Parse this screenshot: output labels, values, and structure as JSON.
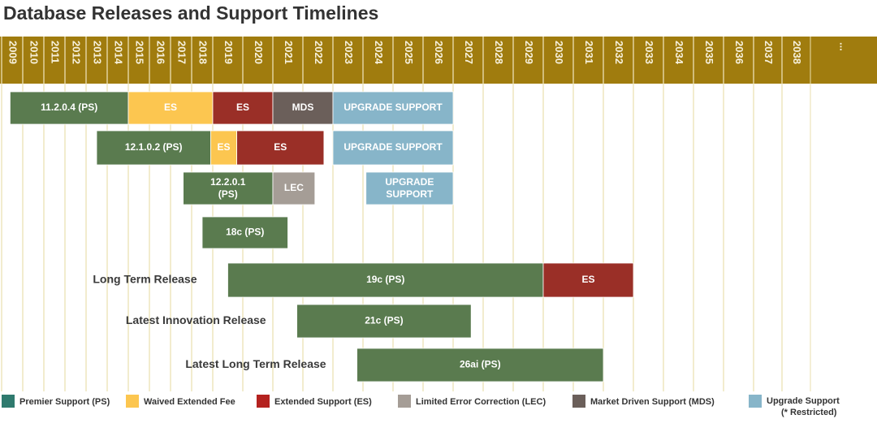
{
  "header": {
    "title": "Database Releases and Support Timelines"
  },
  "timeline": {
    "years": [
      2009,
      2010,
      2011,
      2012,
      2013,
      2014,
      2015,
      2016,
      2017,
      2018,
      2019,
      2020,
      2021,
      2022,
      2023,
      2024,
      2025,
      2026,
      2027,
      2028,
      2029,
      2030,
      2031,
      2032,
      2033,
      2034,
      2035,
      2036,
      2037,
      2038
    ],
    "more": "..."
  },
  "rows": [
    {
      "segments": [
        {
          "label": "11.2.0.4 (PS)",
          "start": 2009.4,
          "end": 2015,
          "color": "#5a7b4f"
        },
        {
          "label": "ES",
          "start": 2015,
          "end": 2019,
          "color": "#fcc650"
        },
        {
          "label": "ES",
          "start": 2019,
          "end": 2021,
          "color": "#9a2f27"
        },
        {
          "label": "MDS",
          "start": 2021,
          "end": 2023,
          "color": "#6b5f5a"
        },
        {
          "label": "UPGRADE SUPPORT",
          "start": 2023,
          "end": 2027,
          "color": "#87b5c9"
        }
      ]
    },
    {
      "segments": [
        {
          "label": "12.1.0.2 (PS)",
          "start": 2013.5,
          "end": 2018.9,
          "color": "#5a7b4f"
        },
        {
          "label": "ES",
          "start": 2018.9,
          "end": 2019.8,
          "color": "#fcc650"
        },
        {
          "label": "ES",
          "start": 2019.8,
          "end": 2022.7,
          "color": "#9a2f27"
        },
        {
          "label": "UPGRADE SUPPORT",
          "start": 2023,
          "end": 2027,
          "color": "#87b5c9"
        }
      ]
    },
    {
      "segments": [
        {
          "label": "12.2.0.1 (PS)",
          "start": 2017.6,
          "end": 2021,
          "color": "#5a7b4f"
        },
        {
          "label": "LEC",
          "start": 2021,
          "end": 2022.4,
          "color": "#a59d96"
        },
        {
          "label": "UPGRADE SUPPORT",
          "start": 2024.1,
          "end": 2027,
          "color": "#87b5c9"
        }
      ]
    },
    {
      "segments": [
        {
          "label": "18c (PS)",
          "start": 2018.5,
          "end": 2021.5,
          "color": "#5a7b4f"
        }
      ]
    },
    {
      "label": "Long Term Release",
      "segments": [
        {
          "label": "19c (PS)",
          "start": 2019.5,
          "end": 2030,
          "color": "#5a7b4f"
        },
        {
          "label": "ES",
          "start": 2030,
          "end": 2033,
          "color": "#9a2f27"
        }
      ]
    },
    {
      "label": "Latest Innovation Release",
      "segments": [
        {
          "label": "21c (PS)",
          "start": 2021.8,
          "end": 2027.6,
          "color": "#5a7b4f"
        }
      ]
    },
    {
      "label": "Latest Long Term Release",
      "segments": [
        {
          "label": "26ai (PS)",
          "start": 2023.8,
          "end": 2032,
          "color": "#5a7b4f"
        }
      ]
    }
  ],
  "legend": [
    {
      "label": "Premier Support (PS)",
      "color": "#2f7a6e"
    },
    {
      "label": "Waived Extended Fee",
      "color": "#fcc650"
    },
    {
      "label": "Extended Support (ES)",
      "color": "#b4221f"
    },
    {
      "label": "Limited Error Correction (LEC)",
      "color": "#a59d96"
    },
    {
      "label": "Market Driven Support (MDS)",
      "color": "#6b5f5a"
    },
    {
      "label": "Upgrade Support",
      "note": "(* Restricted)",
      "color": "#87b5c9"
    }
  ]
}
